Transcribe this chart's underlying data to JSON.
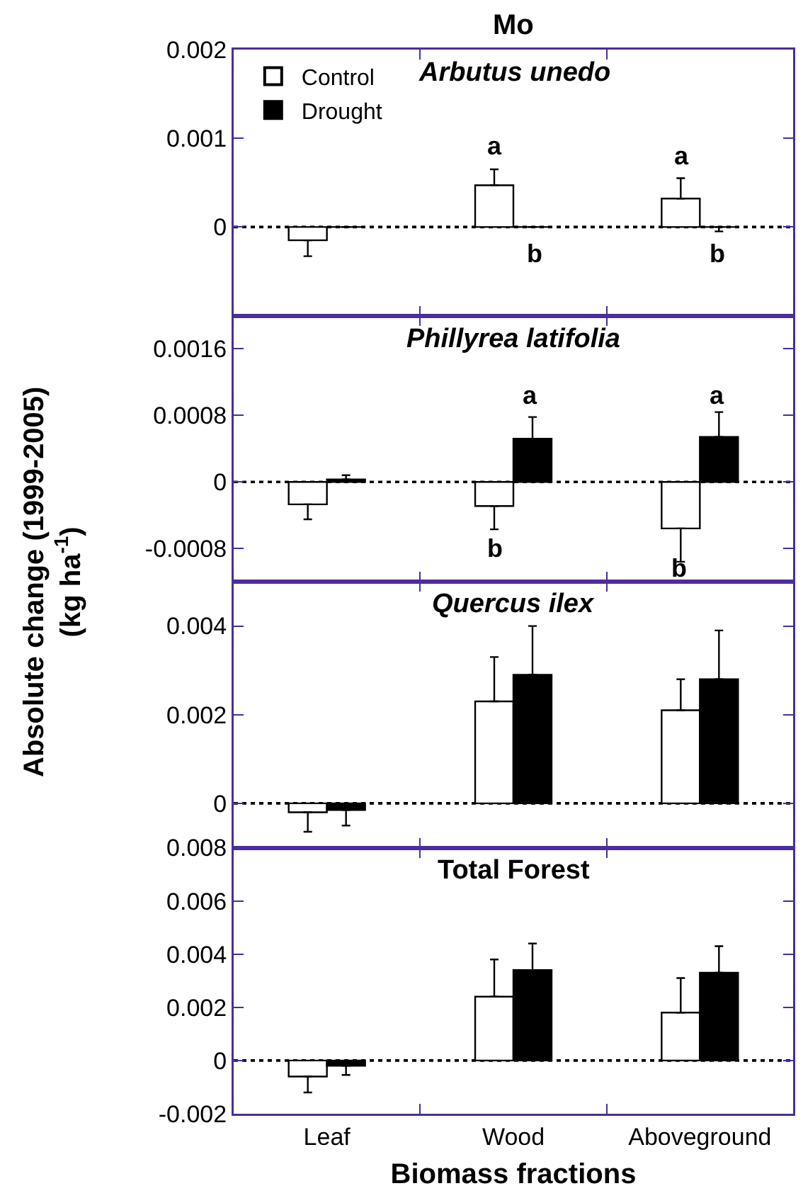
{
  "chart_data": [
    {
      "type": "bar",
      "title": "Arbutus unedo",
      "categories": [
        "Leaf",
        "Wood",
        "Aboveground"
      ],
      "series": [
        {
          "name": "Control",
          "color": "#ffffff",
          "values": [
            -0.00015,
            0.00047,
            0.00032
          ],
          "errors": [
            [
              -0.00033,
              -0.00015
            ],
            [
              0.00047,
              0.00065
            ],
            [
              0.00032,
              0.00055
            ]
          ]
        },
        {
          "name": "Drought",
          "color": "#000000",
          "values": [
            0,
            0,
            0
          ],
          "errors": [
            null,
            null,
            [
              -5e-05,
              0
            ]
          ]
        }
      ],
      "ylim": [
        -0.001,
        0.002
      ],
      "yticks": [
        0,
        0.001,
        0.002
      ],
      "grid": false,
      "legend": "top left",
      "tick_labels": "y",
      "ref_lines": [
        {
          "axis": "y",
          "value": 0,
          "line_style": "dotted"
        }
      ],
      "annotations": [
        "Mo",
        "a",
        "b",
        "a",
        "b"
      ]
    },
    {
      "type": "bar",
      "title": "Phillyrea latifolia",
      "ylabel": "Absolute change (1999-2005) (kg ha$^{-1}$)",
      "categories": [
        "Leaf",
        "Wood",
        "Aboveground"
      ],
      "series": [
        {
          "color": "#ffffff",
          "values": [
            -0.00027,
            -0.00029,
            -0.00056
          ],
          "errors": [
            [
              -0.00045,
              -0.00027
            ],
            [
              -0.00057,
              -0.00029
            ],
            [
              -0.00096,
              -0.00056
            ]
          ]
        },
        {
          "color": "#000000",
          "values": [
            3e-05,
            0.00052,
            0.00054
          ],
          "errors": [
            [
              3e-05,
              8e-05
            ],
            [
              0.00052,
              0.00078
            ],
            [
              0.00054,
              0.00084
            ]
          ]
        }
      ],
      "ylim": [
        -0.0012,
        0.002
      ],
      "yticks": [
        -0.0008,
        0,
        0.0008,
        0.0016
      ],
      "grid": false,
      "tick_labels": "y",
      "ref_lines": [
        {
          "axis": "y",
          "value": 0,
          "line_style": "dotted"
        }
      ],
      "annotations": [
        "a",
        "b",
        "a",
        "b"
      ]
    },
    {
      "type": "bar",
      "title": "Quercus ilex",
      "categories": [
        "Leaf",
        "Wood",
        "Aboveground"
      ],
      "series": [
        {
          "color": "#ffffff",
          "values": [
            -0.0002,
            0.0023,
            0.0021
          ],
          "errors": [
            [
              -0.00064,
              -0.0002
            ],
            [
              0.0023,
              0.0033
            ],
            [
              0.0021,
              0.0028
            ]
          ]
        },
        {
          "color": "#000000",
          "values": [
            -0.00015,
            0.0029,
            0.0028
          ],
          "errors": [
            [
              -0.0005,
              -0.00015
            ],
            [
              0.0029,
              0.004
            ],
            [
              0.0028,
              0.0039
            ]
          ]
        }
      ],
      "ylim": [
        -0.001,
        0.005
      ],
      "yticks": [
        0,
        0.002,
        0.004
      ],
      "grid": false,
      "tick_labels": "y",
      "ref_lines": [
        {
          "axis": "y",
          "value": 0,
          "line_style": "dotted"
        }
      ]
    },
    {
      "type": "bar",
      "title": "Total Forest",
      "xlabel": "Biomass fractions",
      "categories": [
        "Leaf",
        "Wood",
        "Aboveground"
      ],
      "series": [
        {
          "color": "#ffffff",
          "values": [
            -0.0006,
            0.0024,
            0.0018
          ],
          "errors": [
            [
              -0.0012,
              -0.0006
            ],
            [
              0.0024,
              0.0038
            ],
            [
              0.0018,
              0.0031
            ]
          ]
        },
        {
          "color": "#000000",
          "values": [
            -0.0002,
            0.0034,
            0.0033
          ],
          "errors": [
            [
              -0.00054,
              -0.0002
            ],
            [
              0.0034,
              0.0044
            ],
            [
              0.0033,
              0.0043
            ]
          ]
        }
      ],
      "ylim": [
        -0.002,
        0.008
      ],
      "yticks": [
        -0.002,
        0,
        0.002,
        0.004,
        0.006,
        0.008
      ],
      "grid": false,
      "ref_lines": [
        {
          "axis": "y",
          "value": 0,
          "line_style": "dotted"
        }
      ]
    }
  ]
}
